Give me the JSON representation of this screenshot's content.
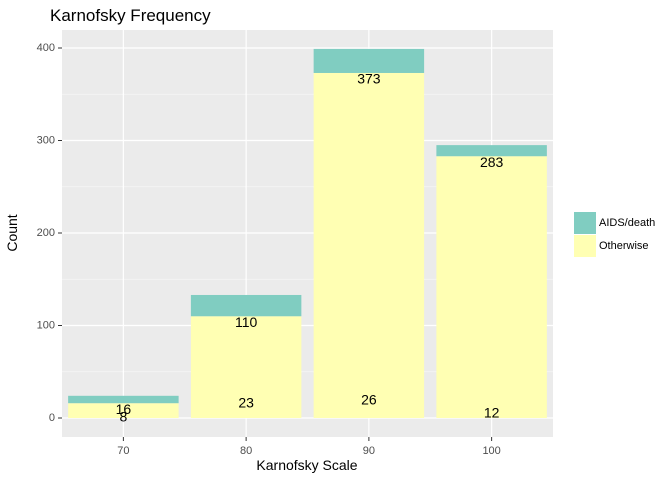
{
  "chart_data": {
    "type": "bar",
    "stacked": true,
    "title": "Karnofsky Frequency",
    "xlabel": "Karnofsky Scale",
    "ylabel": "Count",
    "categories": [
      "70",
      "80",
      "90",
      "100"
    ],
    "ylim": [
      0,
      420
    ],
    "yticks": [
      0,
      100,
      200,
      300,
      400
    ],
    "series": [
      {
        "name": "Otherwise",
        "color": "#FFFFB3",
        "values": [
          16,
          110,
          373,
          283
        ]
      },
      {
        "name": "AIDS/death",
        "color": "#80CDC1",
        "values": [
          8,
          23,
          26,
          12
        ]
      }
    ],
    "grid": true,
    "legend": "right"
  }
}
